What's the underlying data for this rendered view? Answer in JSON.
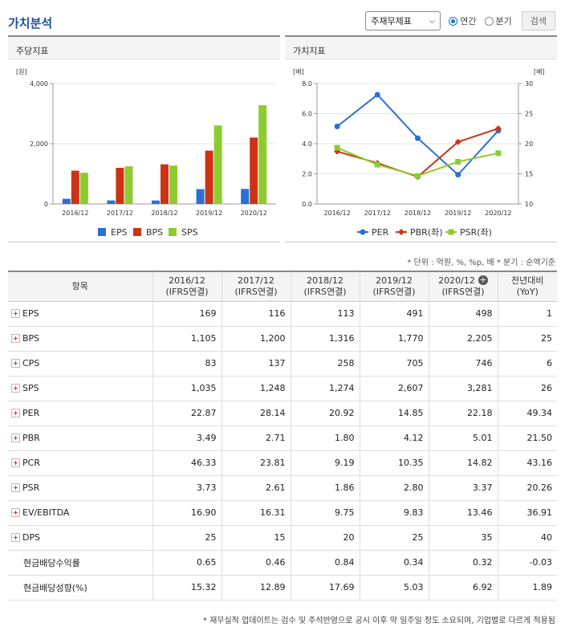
{
  "title": "가치분석",
  "controls": {
    "select_value": "주재무제표",
    "radio_annual": "연간",
    "radio_quarter": "분기",
    "search_label": "검색"
  },
  "panel_left": {
    "title": "주당지표",
    "chart_data": {
      "type": "bar",
      "title": "주당지표",
      "ylabel": "[원]",
      "ylim": [
        0,
        4000
      ],
      "yticks": [
        "4,000",
        "2,000",
        "0"
      ],
      "categories": [
        "2016/12",
        "2017/12",
        "2018/12",
        "2019/12",
        "2020/12"
      ],
      "series": [
        {
          "name": "EPS",
          "color": "#2a6fd6",
          "values": [
            169,
            116,
            113,
            491,
            498
          ]
        },
        {
          "name": "BPS",
          "color": "#cc3314",
          "values": [
            1105,
            1200,
            1316,
            1770,
            2205
          ]
        },
        {
          "name": "SPS",
          "color": "#8ccc2e",
          "values": [
            1035,
            1248,
            1274,
            2607,
            3281
          ]
        }
      ],
      "legend": "bottom"
    }
  },
  "panel_right": {
    "title": "가치지표",
    "chart_data": {
      "type": "line",
      "title": "가치지표",
      "ylabel_left": "[배]",
      "ylabel_right": "[배]",
      "ylim_left": [
        0,
        8
      ],
      "ylim_right": [
        10,
        30
      ],
      "yticks_left": [
        "8.0",
        "6.0",
        "4.0",
        "2.0",
        "0.0"
      ],
      "yticks_right": [
        "30",
        "25",
        "20",
        "15",
        "10"
      ],
      "categories": [
        "2016/12",
        "2017/12",
        "2018/12",
        "2019/12",
        "2020/12"
      ],
      "series": [
        {
          "name": "PER",
          "axis": "right",
          "color": "#2a6fd6",
          "marker": "circle",
          "values": [
            22.87,
            28.14,
            20.92,
            14.85,
            22.18
          ]
        },
        {
          "name": "PBR(좌)",
          "axis": "left",
          "color": "#cc3314",
          "marker": "diamond",
          "values": [
            3.49,
            2.71,
            1.8,
            4.12,
            5.01
          ]
        },
        {
          "name": "PSR(좌)",
          "axis": "left",
          "color": "#8ccc2e",
          "marker": "square",
          "values": [
            3.73,
            2.61,
            1.86,
            2.8,
            3.37
          ]
        }
      ],
      "legend": "bottom"
    }
  },
  "unit_note": "* 단위 : 억원, %, %p, 배   * 분기 : 순액기준",
  "table": {
    "headers": [
      {
        "l1": "항목",
        "l2": ""
      },
      {
        "l1": "2016/12",
        "l2": "(IFRS연결)"
      },
      {
        "l1": "2017/12",
        "l2": "(IFRS연결)"
      },
      {
        "l1": "2018/12",
        "l2": "(IFRS연결)"
      },
      {
        "l1": "2019/12",
        "l2": "(IFRS연결)"
      },
      {
        "l1": "2020/12",
        "l2": "(IFRS연결)"
      },
      {
        "l1": "전년대비",
        "l2": "(YoY)"
      }
    ],
    "rows": [
      {
        "name": "EPS",
        "expand": true,
        "values": [
          "169",
          "116",
          "113",
          "491",
          "498",
          "1"
        ]
      },
      {
        "name": "BPS",
        "expand": true,
        "values": [
          "1,105",
          "1,200",
          "1,316",
          "1,770",
          "2,205",
          "25"
        ]
      },
      {
        "name": "CPS",
        "expand": true,
        "values": [
          "83",
          "137",
          "258",
          "705",
          "746",
          "6"
        ]
      },
      {
        "name": "SPS",
        "expand": true,
        "values": [
          "1,035",
          "1,248",
          "1,274",
          "2,607",
          "3,281",
          "26"
        ]
      },
      {
        "name": "PER",
        "expand": true,
        "values": [
          "22.87",
          "28.14",
          "20.92",
          "14.85",
          "22.18",
          "49.34"
        ]
      },
      {
        "name": "PBR",
        "expand": true,
        "values": [
          "3.49",
          "2.71",
          "1.80",
          "4.12",
          "5.01",
          "21.50"
        ]
      },
      {
        "name": "PCR",
        "expand": true,
        "values": [
          "46.33",
          "23.81",
          "9.19",
          "10.35",
          "14.82",
          "43.16"
        ]
      },
      {
        "name": "PSR",
        "expand": true,
        "values": [
          "3.73",
          "2.61",
          "1.86",
          "2.80",
          "3.37",
          "20.26"
        ]
      },
      {
        "name": "EV/EBITDA",
        "expand": true,
        "values": [
          "16.90",
          "16.31",
          "9.75",
          "9.83",
          "13.46",
          "36.91"
        ]
      },
      {
        "name": "DPS",
        "expand": true,
        "values": [
          "25",
          "15",
          "20",
          "25",
          "35",
          "40"
        ]
      },
      {
        "name": "현금배당수익률",
        "expand": false,
        "values": [
          "0.65",
          "0.46",
          "0.84",
          "0.34",
          "0.32",
          "-0.03"
        ]
      },
      {
        "name": "현금배당성향(%)",
        "expand": false,
        "values": [
          "15.32",
          "12.89",
          "17.69",
          "5.03",
          "6.92",
          "1.89"
        ]
      }
    ]
  },
  "footnote": "* 재무실적 업데이트는 검수 및 주석반영으로 공시 이후 약 일주일 정도 소요되며, 기업별로 다르게 적용됨"
}
